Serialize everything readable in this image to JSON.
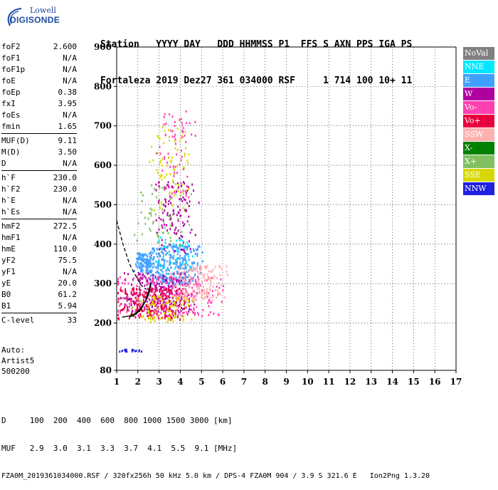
{
  "logo": {
    "line1": "Lowell",
    "line2": "DIGISONDE"
  },
  "header": {
    "line1": "Station   YYYY DAY   DDD HHMMSS P1  FFS S AXN PPS IGA PS",
    "line2": "Fortaleza 2019 Dez27 361 034000 RSF     1 714 100 10+ 11"
  },
  "params": {
    "groups": [
      [
        {
          "k": "foF2",
          "v": "2.600"
        },
        {
          "k": "foF1",
          "v": "N/A"
        },
        {
          "k": "foF1p",
          "v": "N/A"
        },
        {
          "k": "foE",
          "v": "N/A"
        },
        {
          "k": "foEp",
          "v": "0.38"
        },
        {
          "k": "fxI",
          "v": "3.95"
        },
        {
          "k": "foEs",
          "v": "N/A"
        },
        {
          "k": "fmin",
          "v": "1.65"
        }
      ],
      [
        {
          "k": "MUF(D)",
          "v": "9.11"
        },
        {
          "k": "M(D)",
          "v": "3.50"
        },
        {
          "k": "D",
          "v": "N/A"
        }
      ],
      [
        {
          "k": "h`F",
          "v": "230.0"
        },
        {
          "k": "h`F2",
          "v": "230.0"
        },
        {
          "k": "h`E",
          "v": "N/A"
        },
        {
          "k": "h`Es",
          "v": "N/A"
        }
      ],
      [
        {
          "k": "hmF2",
          "v": "272.5"
        },
        {
          "k": "hmF1",
          "v": "N/A"
        },
        {
          "k": "hmE",
          "v": "110.0"
        },
        {
          "k": "yF2",
          "v": "75.5"
        },
        {
          "k": "yF1",
          "v": "N/A"
        },
        {
          "k": "yE",
          "v": "20.0"
        },
        {
          "k": "B0",
          "v": "61.2"
        },
        {
          "k": "B1",
          "v": "5.94"
        }
      ],
      [
        {
          "k": "C-level",
          "v": "33"
        }
      ]
    ]
  },
  "auto": {
    "line1": "Auto:",
    "line2": "Artist5",
    "line3": "500200"
  },
  "legend": [
    {
      "label": "NoVal",
      "color": "#808080"
    },
    {
      "label": "NNE",
      "color": "#00e8ff"
    },
    {
      "label": "E",
      "color": "#40a0ff"
    },
    {
      "label": "W",
      "color": "#b000a0"
    },
    {
      "label": "Vo-",
      "color": "#ff40b0"
    },
    {
      "label": "Vo+",
      "color": "#e8003c"
    },
    {
      "label": "SSW",
      "color": "#ffb0b0"
    },
    {
      "label": "X-",
      "color": "#008000"
    },
    {
      "label": "X+",
      "color": "#80c060"
    },
    {
      "label": "SSE",
      "color": "#d8d800"
    },
    {
      "label": "NNW",
      "color": "#2020e0"
    }
  ],
  "footer": {
    "line1": "D     100  200  400  600  800 1000 1500 3000 [km]",
    "line2": "MUF   2.9  3.0  3.1  3.3  3.7  4.1  5.5  9.1 [MHz]",
    "line3": "FZA0M_2019361034000.RSF / 320fx256h 50 kHz 5.0 km / DPS-4 FZA0M 904 / 3.9 S 321.6 E   Ion2Png 1.3.20"
  },
  "chart_data": {
    "type": "scatter",
    "xlim": [
      1,
      17
    ],
    "ylim": [
      80,
      900
    ],
    "xticks": [
      1,
      2,
      3,
      4,
      5,
      6,
      7,
      8,
      9,
      10,
      11,
      12,
      13,
      14,
      15,
      16,
      17
    ],
    "yticks": [
      80,
      200,
      300,
      400,
      500,
      600,
      700,
      800,
      900
    ],
    "grid": true,
    "legend_position": "right",
    "clusters": [
      {
        "name": "E",
        "x": [
          1.9,
          2.6
        ],
        "y": [
          330,
          380
        ],
        "n": 120
      },
      {
        "name": "E",
        "x": [
          2.8,
          4.6
        ],
        "y": [
          300,
          400
        ],
        "n": 320
      },
      {
        "name": "W",
        "x": [
          1.6,
          4.2
        ],
        "y": [
          230,
          330
        ],
        "n": 260
      },
      {
        "name": "Vo-",
        "x": [
          1.4,
          5.2
        ],
        "y": [
          220,
          320
        ],
        "n": 260
      },
      {
        "name": "Vo+",
        "x": [
          1.4,
          4.0
        ],
        "y": [
          210,
          290
        ],
        "n": 180
      },
      {
        "name": "SSW",
        "x": [
          3.8,
          5.8
        ],
        "y": [
          260,
          350
        ],
        "n": 160
      },
      {
        "name": "SSE",
        "x": [
          2.0,
          4.2
        ],
        "y": [
          205,
          270
        ],
        "n": 90
      },
      {
        "name": "X+",
        "x": [
          2.2,
          4.0
        ],
        "y": [
          400,
          560
        ],
        "n": 60
      },
      {
        "name": "SSE",
        "x": [
          2.8,
          4.3
        ],
        "y": [
          480,
          700
        ],
        "n": 80
      },
      {
        "name": "Vo-",
        "x": [
          3.2,
          4.4
        ],
        "y": [
          520,
          740
        ],
        "n": 70
      },
      {
        "name": "W",
        "x": [
          3.0,
          4.5
        ],
        "y": [
          380,
          560
        ],
        "n": 110
      },
      {
        "name": "NNE",
        "x": [
          2.9,
          4.4
        ],
        "y": [
          340,
          420
        ],
        "n": 40
      },
      {
        "name": "NNW",
        "x": [
          1.2,
          2.0
        ],
        "y": [
          130,
          135
        ],
        "n": 20
      }
    ],
    "curves": [
      {
        "name": "profile-dashed",
        "x": [
          1.0,
          1.3,
          1.6,
          1.9,
          2.1,
          2.25,
          2.4
        ],
        "y": [
          460,
          400,
          350,
          320,
          300,
          290,
          285
        ]
      },
      {
        "name": "trace-solid",
        "x": [
          1.25,
          1.6,
          1.9,
          2.1,
          2.3,
          2.45,
          2.55,
          2.6
        ],
        "y": [
          215,
          218,
          225,
          235,
          250,
          265,
          280,
          300
        ]
      },
      {
        "name": "virtual-solid",
        "x": [
          1.6,
          1.9,
          2.15,
          2.35,
          2.5,
          2.6
        ],
        "y": [
          215,
          222,
          235,
          255,
          280,
          300
        ]
      }
    ]
  }
}
